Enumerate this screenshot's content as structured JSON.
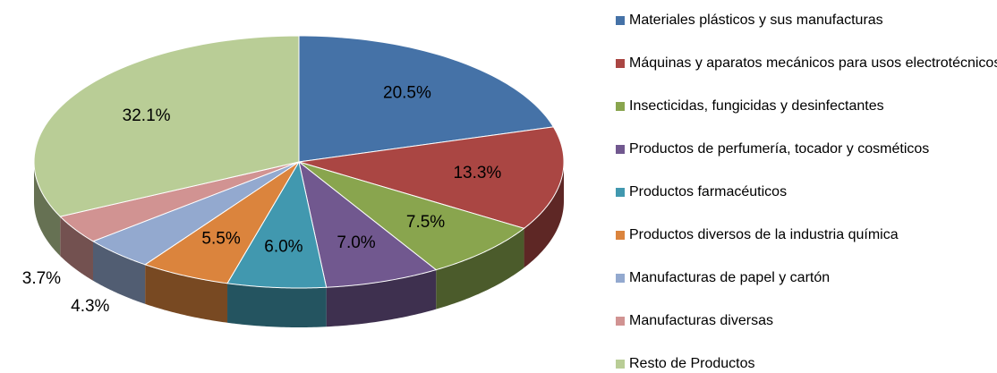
{
  "chart_data": {
    "type": "pie3d",
    "categories": [
      "Materiales plásticos y sus manufacturas",
      "Máquinas y aparatos mecánicos para usos electrotécnicos",
      "Insecticidas, fungicidas y desinfectantes",
      "Productos de perfumería, tocador y cosméticos",
      "Productos farmacéuticos",
      "Productos diversos de la industria química",
      "Manufacturas de papel y cartón",
      "Manufacturas diversas",
      "Resto de Productos"
    ],
    "values": [
      20.5,
      13.3,
      7.5,
      7.0,
      6.0,
      5.5,
      4.3,
      3.7,
      32.1
    ],
    "value_labels": [
      "20.5%",
      "13.3%",
      "7.5%",
      "7.0%",
      "6.0%",
      "5.5%",
      "4.3%",
      "3.7%",
      "32.1%"
    ],
    "colors": [
      "#4572a7",
      "#aa4643",
      "#89a54e",
      "#71588f",
      "#4198af",
      "#db843d",
      "#93a9cf",
      "#d19392",
      "#b9cd96"
    ],
    "legend": "right"
  }
}
